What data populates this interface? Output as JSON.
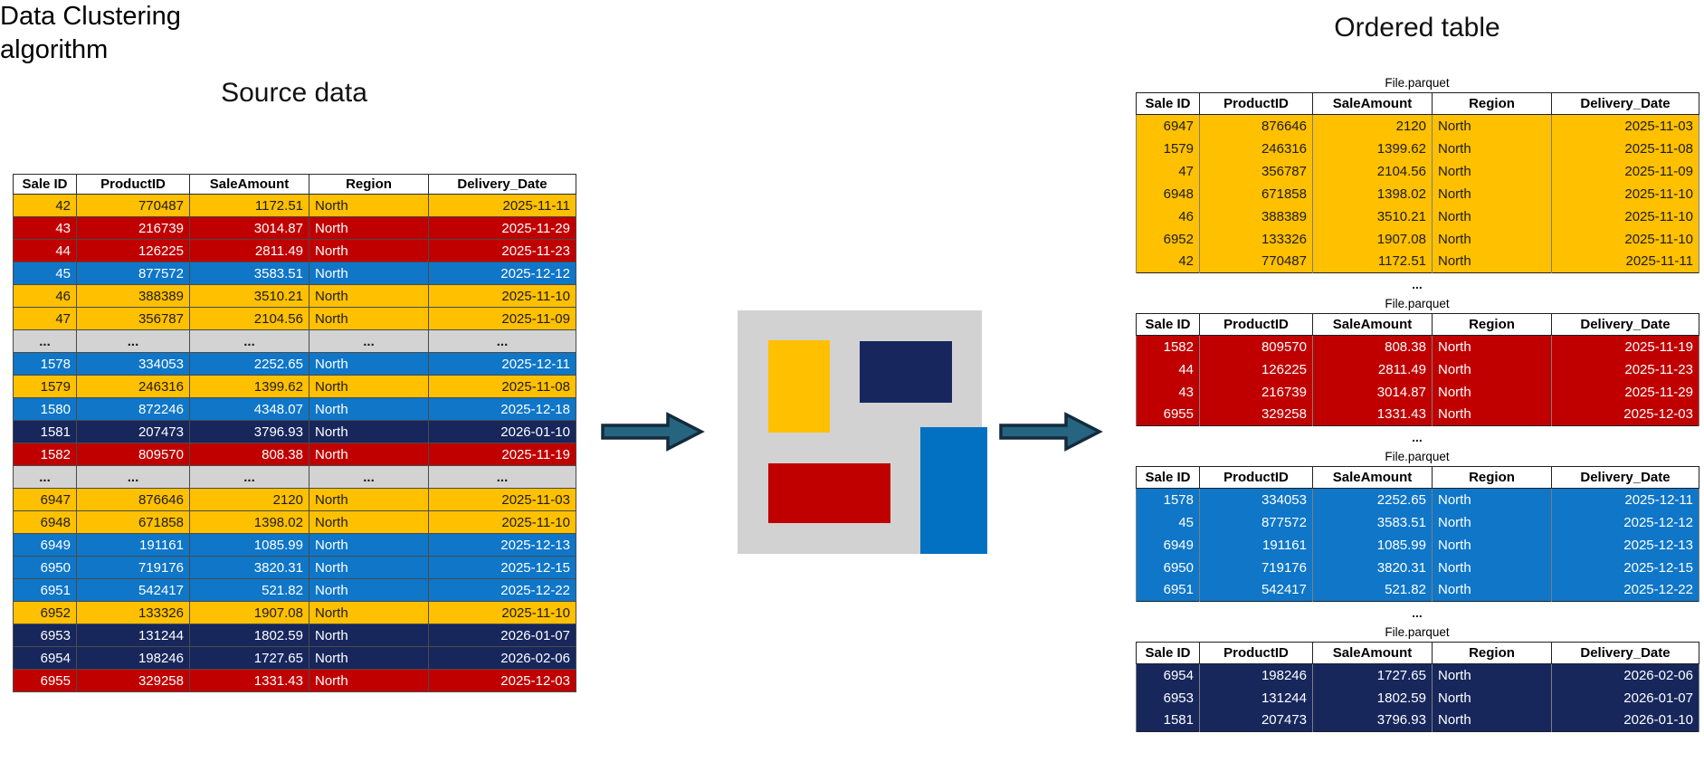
{
  "titles": {
    "source": "Source data",
    "algorithm_line1": "Data Clustering",
    "algorithm_line2": "algorithm",
    "ordered": "Ordered table"
  },
  "ellipsis": "...",
  "columns": [
    "Sale ID",
    "ProductID",
    "SaleAmount",
    "Region",
    "Delivery_Date"
  ],
  "source_table": {
    "rows": [
      {
        "color": "gold",
        "cells": [
          "42",
          "770487",
          "1172.51",
          "North",
          "2025-11-11"
        ]
      },
      {
        "color": "red",
        "cells": [
          "43",
          "216739",
          "3014.87",
          "North",
          "2025-11-29"
        ]
      },
      {
        "color": "red",
        "cells": [
          "44",
          "126225",
          "2811.49",
          "North",
          "2025-11-23"
        ]
      },
      {
        "color": "blue",
        "cells": [
          "45",
          "877572",
          "3583.51",
          "North",
          "2025-12-12"
        ]
      },
      {
        "color": "gold",
        "cells": [
          "46",
          "388389",
          "3510.21",
          "North",
          "2025-11-10"
        ]
      },
      {
        "color": "gold",
        "cells": [
          "47",
          "356787",
          "2104.56",
          "North",
          "2025-11-09"
        ]
      },
      {
        "color": "gray",
        "cells": [
          "...",
          "...",
          "...",
          "...",
          "..."
        ]
      },
      {
        "color": "blue",
        "cells": [
          "1578",
          "334053",
          "2252.65",
          "North",
          "2025-12-11"
        ]
      },
      {
        "color": "gold",
        "cells": [
          "1579",
          "246316",
          "1399.62",
          "North",
          "2025-11-08"
        ]
      },
      {
        "color": "blue",
        "cells": [
          "1580",
          "872246",
          "4348.07",
          "North",
          "2025-12-18"
        ]
      },
      {
        "color": "navy",
        "cells": [
          "1581",
          "207473",
          "3796.93",
          "North",
          "2026-01-10"
        ]
      },
      {
        "color": "red",
        "cells": [
          "1582",
          "809570",
          "808.38",
          "North",
          "2025-11-19"
        ]
      },
      {
        "color": "gray",
        "cells": [
          "...",
          "...",
          "...",
          "...",
          "..."
        ]
      },
      {
        "color": "gold",
        "cells": [
          "6947",
          "876646",
          "2120",
          "North",
          "2025-11-03"
        ]
      },
      {
        "color": "gold",
        "cells": [
          "6948",
          "671858",
          "1398.02",
          "North",
          "2025-11-10"
        ]
      },
      {
        "color": "blue",
        "cells": [
          "6949",
          "191161",
          "1085.99",
          "North",
          "2025-12-13"
        ]
      },
      {
        "color": "blue",
        "cells": [
          "6950",
          "719176",
          "3820.31",
          "North",
          "2025-12-15"
        ]
      },
      {
        "color": "blue",
        "cells": [
          "6951",
          "542417",
          "521.82",
          "North",
          "2025-12-22"
        ]
      },
      {
        "color": "gold",
        "cells": [
          "6952",
          "133326",
          "1907.08",
          "North",
          "2025-11-10"
        ]
      },
      {
        "color": "navy",
        "cells": [
          "6953",
          "131244",
          "1802.59",
          "North",
          "2026-01-07"
        ]
      },
      {
        "color": "navy",
        "cells": [
          "6954",
          "198246",
          "1727.65",
          "North",
          "2026-02-06"
        ]
      },
      {
        "color": "red",
        "cells": [
          "6955",
          "329258",
          "1331.43",
          "North",
          "2025-12-03"
        ]
      }
    ]
  },
  "parquet_tables": [
    {
      "file_label": "File.parquet",
      "color": "gold",
      "rows": [
        [
          "6947",
          "876646",
          "2120",
          "North",
          "2025-11-03"
        ],
        [
          "1579",
          "246316",
          "1399.62",
          "North",
          "2025-11-08"
        ],
        [
          "47",
          "356787",
          "2104.56",
          "North",
          "2025-11-09"
        ],
        [
          "6948",
          "671858",
          "1398.02",
          "North",
          "2025-11-10"
        ],
        [
          "46",
          "388389",
          "3510.21",
          "North",
          "2025-11-10"
        ],
        [
          "6952",
          "133326",
          "1907.08",
          "North",
          "2025-11-10"
        ],
        [
          "42",
          "770487",
          "1172.51",
          "North",
          "2025-11-11"
        ]
      ]
    },
    {
      "file_label": "File.parquet",
      "color": "red",
      "rows": [
        [
          "1582",
          "809570",
          "808.38",
          "North",
          "2025-11-19"
        ],
        [
          "44",
          "126225",
          "2811.49",
          "North",
          "2025-11-23"
        ],
        [
          "43",
          "216739",
          "3014.87",
          "North",
          "2025-11-29"
        ],
        [
          "6955",
          "329258",
          "1331.43",
          "North",
          "2025-12-03"
        ]
      ]
    },
    {
      "file_label": "File.parquet",
      "color": "blue",
      "rows": [
        [
          "1578",
          "334053",
          "2252.65",
          "North",
          "2025-12-11"
        ],
        [
          "45",
          "877572",
          "3583.51",
          "North",
          "2025-12-12"
        ],
        [
          "6949",
          "191161",
          "1085.99",
          "North",
          "2025-12-13"
        ],
        [
          "6950",
          "719176",
          "3820.31",
          "North",
          "2025-12-15"
        ],
        [
          "6951",
          "542417",
          "521.82",
          "North",
          "2025-12-22"
        ]
      ]
    },
    {
      "file_label": "File.parquet",
      "color": "navy",
      "rows": [
        [
          "6954",
          "198246",
          "1727.65",
          "North",
          "2026-02-06"
        ],
        [
          "6953",
          "131244",
          "1802.59",
          "North",
          "2026-01-07"
        ],
        [
          "1581",
          "207473",
          "3796.93",
          "North",
          "2026-01-10"
        ]
      ]
    }
  ],
  "cluster_colors": {
    "gold": "#FFC000",
    "red": "#C00000",
    "blue": "#0F76C8",
    "navy": "#17275C",
    "ellipsis_gray": "#D3D3D3",
    "graphic_background": "#D2D2D2",
    "arrow_fill": "#266480",
    "arrow_outline": "#132B3C"
  }
}
